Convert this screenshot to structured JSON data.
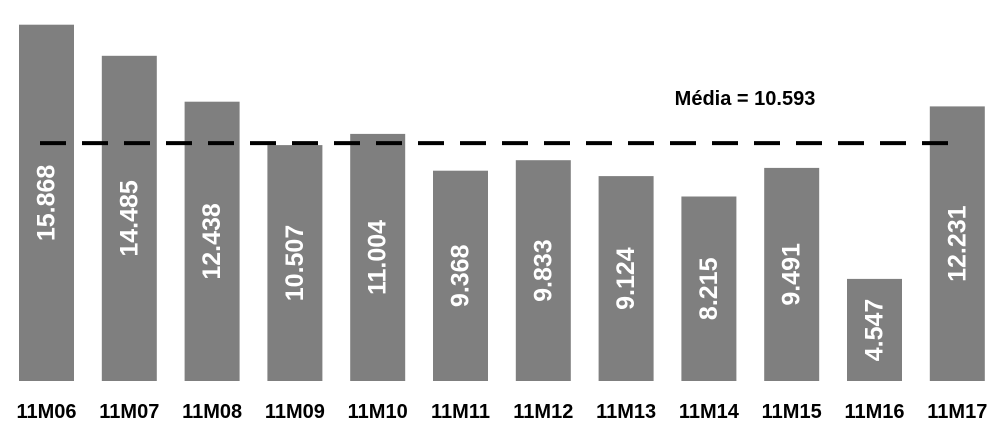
{
  "chart_data": {
    "type": "bar",
    "categories": [
      "11M06",
      "11M07",
      "11M08",
      "11M09",
      "11M10",
      "11M11",
      "11M12",
      "11M13",
      "11M14",
      "11M15",
      "11M16",
      "11M17"
    ],
    "values": [
      15.868,
      14.485,
      12.438,
      10.507,
      11.004,
      9.368,
      9.833,
      9.124,
      8.215,
      9.491,
      4.547,
      12.231
    ],
    "value_labels": [
      "15.868",
      "14.485",
      "12.438",
      "10.507",
      "11.004",
      "9.368",
      "9.833",
      "9.124",
      "8.215",
      "9.491",
      "4.547",
      "12.231"
    ],
    "average": 10.593,
    "average_label": "Média = 10.593",
    "ylim": [
      0,
      16.3
    ],
    "grid": false,
    "bar_color": "#7f7f7f",
    "value_label_color": "#ffffff",
    "average_line_style": "dashed"
  }
}
